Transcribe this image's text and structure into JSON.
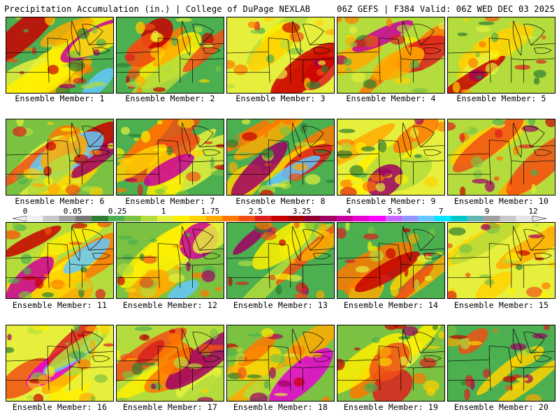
{
  "header": {
    "title": "Precipitation Accumulation (in.) | College of DuPage NEXLAB",
    "run_info": "06Z GEFS | F384 Valid: 06Z WED DEC 03 2025"
  },
  "members": [
    {
      "label": "Ensemble Member: 1"
    },
    {
      "label": "Ensemble Member: 2"
    },
    {
      "label": "Ensemble Member: 3"
    },
    {
      "label": "Ensemble Member: 4"
    },
    {
      "label": "Ensemble Member: 5"
    },
    {
      "label": "Ensemble Member: 6"
    },
    {
      "label": "Ensemble Member: 7"
    },
    {
      "label": "Ensemble Member: 8"
    },
    {
      "label": "Ensemble Member: 9"
    },
    {
      "label": "Ensemble Member: 10"
    },
    {
      "label": "Ensemble Member: 11"
    },
    {
      "label": "Ensemble Member: 12"
    },
    {
      "label": "Ensemble Member: 13"
    },
    {
      "label": "Ensemble Member: 14"
    },
    {
      "label": "Ensemble Member: 15"
    },
    {
      "label": "Ensemble Member: 16"
    },
    {
      "label": "Ensemble Member: 17"
    },
    {
      "label": "Ensemble Member: 18"
    },
    {
      "label": "Ensemble Member: 19"
    },
    {
      "label": "Ensemble Member: 20"
    }
  ],
  "colorbar": {
    "labels": [
      "0",
      "0.05",
      "0.25",
      "1",
      "1.75",
      "2.5",
      "3.25",
      "4",
      "5.5",
      "7",
      "9",
      "12"
    ],
    "colors": [
      "#f0f0f0",
      "#c8c8c8",
      "#a0a0a0",
      "#787878",
      "#2e7d32",
      "#4caf50",
      "#7cc242",
      "#b4dc3c",
      "#e6f03c",
      "#fff000",
      "#ffd200",
      "#ffaa00",
      "#ff7800",
      "#f05014",
      "#dc1e1e",
      "#c80000",
      "#a00000",
      "#8c0032",
      "#a00064",
      "#c8009b",
      "#e600d2",
      "#ff00ff",
      "#c864ff",
      "#9696ff",
      "#64c8ff",
      "#00e6ff",
      "#00c8c8",
      "#64b4b4",
      "#a0a0a0",
      "#c8c8c8",
      "#e6e6e6"
    ]
  }
}
